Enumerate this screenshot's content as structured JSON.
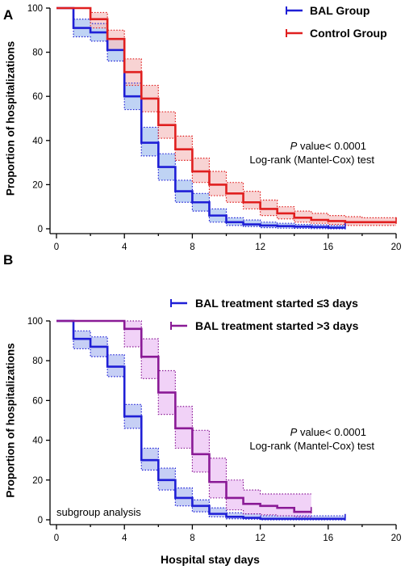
{
  "chart_data": [
    {
      "type": "line",
      "panel_label": "A",
      "ylabel": "Proportion of hospitalizations",
      "xlabel": "",
      "xlim": [
        0,
        20
      ],
      "ylim": [
        0,
        100
      ],
      "x_ticks": [
        "0",
        "4",
        "8",
        "12",
        "16",
        "20"
      ],
      "y_ticks": [
        "0",
        "20",
        "40",
        "60",
        "80",
        "100"
      ],
      "annotation_p": "P",
      "annotation_rest": " value< 0.0001",
      "annotation_line2": "Log-rank (Mantel-Cox) test",
      "legend_position": "top-right",
      "series": [
        {
          "name": "BAL Group",
          "color": "#1f1fd6",
          "fill": "#a9c4f0",
          "x": [
            0,
            1,
            2,
            3,
            4,
            5,
            6,
            7,
            8,
            9,
            10,
            11,
            12,
            13,
            14,
            15,
            16,
            17
          ],
          "y": [
            100,
            91,
            89,
            81,
            60,
            39,
            28,
            17,
            12,
            6,
            3,
            2,
            1.5,
            1.2,
            1,
            0.8,
            0.5,
            0.5
          ],
          "ci_upper": [
            100,
            95,
            93,
            86,
            66,
            46,
            34,
            22,
            16,
            9,
            5,
            4,
            3,
            2.5,
            2,
            1.8,
            1.5,
            1.5
          ],
          "ci_lower": [
            100,
            87,
            85,
            76,
            54,
            33,
            22,
            12,
            8,
            3,
            1.5,
            1,
            0.5,
            0.3,
            0.2,
            0.1,
            0,
            0
          ],
          "end_x": 17
        },
        {
          "name": "Control Group",
          "color": "#e01f1f",
          "fill": "#f6c4c4",
          "x": [
            0,
            1,
            2,
            3,
            4,
            5,
            6,
            7,
            8,
            9,
            10,
            11,
            12,
            13,
            14,
            15,
            16,
            17,
            18,
            19
          ],
          "y": [
            100,
            100,
            95,
            86,
            71,
            59,
            47,
            36,
            26,
            20,
            16,
            12,
            9,
            7,
            5,
            4,
            3.5,
            3,
            3,
            3
          ],
          "ci_upper": [
            100,
            100,
            98,
            90,
            77,
            65,
            53,
            42,
            32,
            26,
            21,
            17,
            13,
            10,
            8,
            7,
            6,
            5.5,
            5,
            5
          ],
          "ci_lower": [
            100,
            100,
            91,
            81,
            65,
            53,
            41,
            31,
            21,
            15,
            12,
            9,
            6,
            4.5,
            3,
            2.5,
            2,
            1.5,
            1.5,
            1.5
          ],
          "end_x": 20
        }
      ]
    },
    {
      "type": "line",
      "panel_label": "B",
      "ylabel": "Proportion of hospitalizations",
      "xlabel": "Hospital stay days",
      "xlim": [
        0,
        20
      ],
      "ylim": [
        0,
        100
      ],
      "x_ticks": [
        "0",
        "4",
        "8",
        "12",
        "16",
        "20"
      ],
      "y_ticks": [
        "0",
        "20",
        "40",
        "60",
        "80",
        "100"
      ],
      "annotation_p": "P",
      "annotation_rest": " value< 0.0001",
      "annotation_line2": "Log-rank (Mantel-Cox) test",
      "subgroup_note": "subgroup analysis",
      "legend_position": "top-right",
      "series": [
        {
          "name": "BAL treatment started ≤3 days",
          "color": "#1f1fd6",
          "fill": "#b3bff2",
          "x": [
            0,
            1,
            2,
            3,
            4,
            5,
            6,
            7,
            8,
            9,
            10,
            11,
            12,
            13,
            14,
            15,
            16,
            17
          ],
          "y": [
            100,
            91,
            87,
            77,
            52,
            30,
            20,
            11,
            7,
            3,
            1.5,
            1,
            0.5,
            0.5,
            0.5,
            0.5,
            0.5,
            0.5
          ],
          "ci_upper": [
            100,
            95,
            92,
            83,
            58,
            36,
            26,
            16,
            10,
            6,
            3.5,
            3,
            2,
            2,
            2,
            2,
            2,
            2
          ],
          "ci_lower": [
            100,
            86,
            82,
            72,
            46,
            25,
            15,
            7,
            4,
            1.5,
            0.5,
            0.3,
            0,
            0,
            0,
            0,
            0,
            0
          ],
          "end_x": 17
        },
        {
          "name": "BAL treatment started >3 days",
          "color": "#8a1a96",
          "fill": "#ecc3f4",
          "x": [
            0,
            4,
            5,
            6,
            7,
            8,
            9,
            10,
            11,
            12,
            13,
            14,
            15
          ],
          "y": [
            100,
            96,
            82,
            64,
            46,
            33,
            19,
            11,
            8,
            7,
            6,
            4,
            4
          ],
          "ci_upper": [
            100,
            100,
            91,
            75,
            57,
            45,
            31,
            20,
            15,
            13,
            13,
            13,
            13
          ],
          "ci_lower": [
            100,
            87,
            71,
            53,
            36,
            24,
            11,
            5,
            3,
            2.5,
            2,
            1.5,
            1.5
          ],
          "end_x": 15
        }
      ]
    }
  ]
}
